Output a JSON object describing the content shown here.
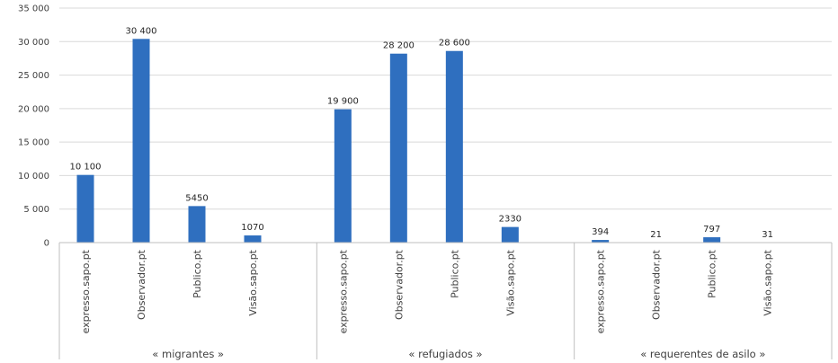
{
  "chart_data": {
    "type": "bar",
    "title": "",
    "xlabel": "",
    "ylabel": "",
    "ylim": [
      0,
      35000
    ],
    "yticks": [
      0,
      5000,
      10000,
      15000,
      20000,
      25000,
      30000,
      35000
    ],
    "ytick_labels": [
      "0",
      "5 000",
      "10 000",
      "15 000",
      "20 000",
      "25 000",
      "30 000",
      "35 000"
    ],
    "grid": true,
    "bar_color": "#2f6fbf",
    "groups": [
      {
        "label": "« migrantes »",
        "categories": [
          "expresso.sapo.pt",
          "Observador.pt",
          "Publico.pt",
          "Visão.sapo.pt"
        ],
        "values": [
          10100,
          30400,
          5450,
          1070
        ],
        "value_labels": [
          "10 100",
          "30 400",
          "5450",
          "1070"
        ]
      },
      {
        "label": "« refugiados »",
        "categories": [
          "expresso.sapo.pt",
          "Observador.pt",
          "Publico.pt",
          "Visão.sapo.pt"
        ],
        "values": [
          19900,
          28200,
          28600,
          2330
        ],
        "value_labels": [
          "19 900",
          "28 200",
          "28 600",
          "2330"
        ]
      },
      {
        "label": "« requerentes de asilo »",
        "categories": [
          "expresso.sapo.pt",
          "Observador.pt",
          "Publico.pt",
          "Visão.sapo.pt"
        ],
        "values": [
          394,
          21,
          797,
          31
        ],
        "value_labels": [
          "394",
          "21",
          "797",
          "31"
        ]
      }
    ]
  }
}
